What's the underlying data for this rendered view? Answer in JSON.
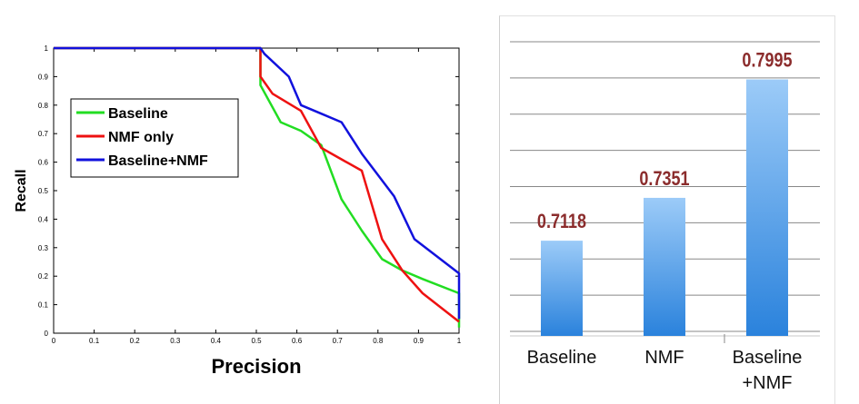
{
  "chart_data": [
    {
      "type": "line",
      "title": "",
      "xlabel": "Precision",
      "ylabel": "Recall",
      "xlim": [
        0,
        1
      ],
      "ylim": [
        0,
        1
      ],
      "xticks": [
        "0",
        "0.1",
        "0.2",
        "0.3",
        "0.4",
        "0.5",
        "0.6",
        "0.7",
        "0.8",
        "0.9",
        "1"
      ],
      "yticks": [
        "0",
        "0.1",
        "0.2",
        "0.3",
        "0.4",
        "0.5",
        "0.6",
        "0.7",
        "0.8",
        "0.9",
        "1"
      ],
      "grid": false,
      "legend": "upper-left",
      "series": [
        {
          "name": "Baseline",
          "color": "#22dd22",
          "points": [
            [
              0,
              1
            ],
            [
              0.51,
              1
            ],
            [
              0.51,
              0.87
            ],
            [
              0.56,
              0.74
            ],
            [
              0.61,
              0.71
            ],
            [
              0.66,
              0.66
            ],
            [
              0.71,
              0.47
            ],
            [
              0.76,
              0.36
            ],
            [
              0.81,
              0.26
            ],
            [
              0.86,
              0.22
            ],
            [
              0.91,
              0.19
            ],
            [
              1.0,
              0.14
            ],
            [
              1.0,
              0.02
            ]
          ]
        },
        {
          "name": "NMF only",
          "color": "#ee1111",
          "points": [
            [
              0,
              1
            ],
            [
              0.51,
              1
            ],
            [
              0.51,
              0.9
            ],
            [
              0.54,
              0.84
            ],
            [
              0.61,
              0.78
            ],
            [
              0.66,
              0.65
            ],
            [
              0.71,
              0.61
            ],
            [
              0.76,
              0.57
            ],
            [
              0.81,
              0.33
            ],
            [
              0.86,
              0.22
            ],
            [
              0.91,
              0.14
            ],
            [
              1.0,
              0.04
            ]
          ]
        },
        {
          "name": "Baseline+NMF",
          "color": "#1111dd",
          "points": [
            [
              0,
              1
            ],
            [
              0.51,
              1
            ],
            [
              0.52,
              0.98
            ],
            [
              0.58,
              0.9
            ],
            [
              0.61,
              0.8
            ],
            [
              0.66,
              0.77
            ],
            [
              0.71,
              0.74
            ],
            [
              0.76,
              0.63
            ],
            [
              0.84,
              0.48
            ],
            [
              0.89,
              0.33
            ],
            [
              1.0,
              0.21
            ],
            [
              1.0,
              0.05
            ]
          ]
        }
      ]
    },
    {
      "type": "bar",
      "title": "",
      "categories": [
        "Baseline",
        "NMF",
        "Baseline\n+NMF"
      ],
      "values": [
        0.7118,
        0.7351,
        0.7995
      ],
      "value_labels": [
        "0.7118",
        "0.7351",
        "0.7995"
      ],
      "ylim": [
        0.66,
        0.82
      ],
      "grid": true,
      "bar_color_top": "#9ccbf8",
      "bar_color_bottom": "#2a82dc",
      "label_color": "#8b2c2c"
    }
  ]
}
